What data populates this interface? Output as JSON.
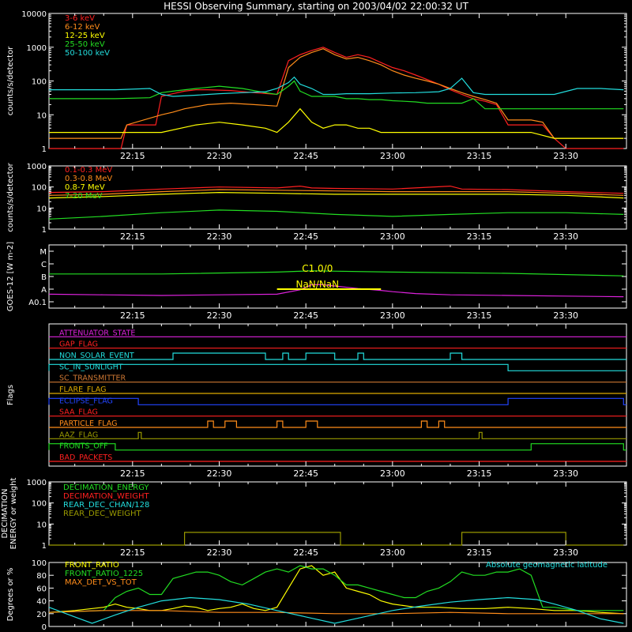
{
  "title": "HESSI Observing Summary, starting on 2003/04/02 22:00:32 UT",
  "colors": {
    "red": "#ff2020",
    "orange": "#ff8c1a",
    "yellow": "#ffff00",
    "green": "#22dd22",
    "cyan": "#22dddd",
    "magenta": "#dd22dd",
    "blue": "#2244ff",
    "olive": "#999900",
    "gold": "#ddaa00",
    "brown": "#cc7733",
    "axis": "#ffffff"
  },
  "time_ticks": [
    "22:15",
    "22:30",
    "22:45",
    "23:00",
    "23:15",
    "23:30"
  ],
  "chart_data": [
    {
      "type": "line",
      "title": "HESSI Observing Summary, starting on 2003/04/02 22:00:32 UT",
      "ylabel": "counts/s/detector",
      "yscale": "log",
      "ylim": [
        1,
        10000
      ],
      "yticks": [
        "1",
        "10",
        "100",
        "1000",
        "10000"
      ],
      "x_unit": "minutes after 22:00",
      "legend": [
        "3-6 keV",
        "6-12 keV",
        "12-25 keV",
        "25-50 keV",
        "50-100 keV"
      ],
      "series": [
        {
          "name": "3-6 keV",
          "color": "red",
          "x": [
            0,
            13,
            14,
            19,
            20,
            22,
            24,
            26,
            28,
            32,
            36,
            40,
            42,
            44,
            46,
            48,
            50,
            52,
            54,
            56,
            58,
            60,
            62,
            64,
            66,
            68,
            70,
            72,
            74,
            76,
            78,
            80,
            82,
            84,
            86,
            88,
            90,
            92,
            94,
            96,
            98,
            100
          ],
          "y": [
            1,
            1,
            5,
            5,
            35,
            42,
            50,
            55,
            55,
            52,
            45,
            40,
            400,
            600,
            800,
            1000,
            700,
            500,
            600,
            500,
            350,
            250,
            200,
            150,
            110,
            80,
            55,
            40,
            30,
            25,
            20,
            5,
            5,
            5,
            5,
            2,
            1,
            1,
            1,
            1,
            1,
            1
          ]
        },
        {
          "name": "6-12 keV",
          "color": "orange",
          "x": [
            0,
            13,
            14,
            20,
            22,
            24,
            28,
            32,
            36,
            40,
            42,
            44,
            46,
            48,
            50,
            52,
            54,
            56,
            58,
            60,
            62,
            64,
            66,
            68,
            70,
            72,
            74,
            76,
            78,
            80,
            82,
            84,
            86,
            88,
            92,
            96,
            100
          ],
          "y": [
            2,
            2,
            5,
            10,
            12,
            15,
            20,
            22,
            20,
            18,
            250,
            500,
            700,
            900,
            600,
            450,
            500,
            400,
            300,
            200,
            150,
            120,
            100,
            80,
            60,
            45,
            35,
            28,
            22,
            7,
            7,
            7,
            6,
            2,
            2,
            2,
            2
          ]
        },
        {
          "name": "12-25 keV",
          "color": "yellow",
          "x": [
            0,
            10,
            20,
            26,
            30,
            34,
            38,
            40,
            42,
            44,
            46,
            48,
            50,
            52,
            54,
            56,
            58,
            60,
            62,
            64,
            66,
            68,
            70,
            72,
            74,
            76,
            80,
            84,
            88,
            92,
            96,
            100
          ],
          "y": [
            3,
            3,
            3,
            5,
            6,
            5,
            4,
            3,
            6,
            15,
            6,
            4,
            5,
            5,
            4,
            4,
            3,
            3,
            3,
            3,
            3,
            3,
            3,
            3,
            3,
            3,
            3,
            3,
            2,
            2,
            2,
            2
          ]
        },
        {
          "name": "25-50 keV",
          "color": "green",
          "x": [
            0,
            6,
            12,
            18,
            20,
            22,
            26,
            30,
            34,
            38,
            40,
            42,
            43,
            44,
            46,
            48,
            50,
            52,
            54,
            56,
            58,
            60,
            62,
            64,
            66,
            68,
            70,
            72,
            74,
            76,
            80,
            84,
            88,
            92,
            96,
            100
          ],
          "y": [
            30,
            30,
            30,
            32,
            45,
            50,
            60,
            70,
            60,
            45,
            40,
            70,
            100,
            50,
            35,
            35,
            35,
            30,
            30,
            28,
            28,
            26,
            25,
            24,
            22,
            22,
            22,
            22,
            30,
            15,
            15,
            15,
            15,
            15,
            15,
            15
          ]
        },
        {
          "name": "50-100 keV",
          "color": "cyan",
          "x": [
            0,
            6,
            12,
            18,
            20,
            22,
            26,
            30,
            34,
            38,
            40,
            42,
            43,
            44,
            46,
            48,
            50,
            52,
            56,
            60,
            64,
            68,
            70,
            72,
            74,
            76,
            80,
            84,
            88,
            92,
            96,
            100
          ],
          "y": [
            55,
            55,
            55,
            60,
            40,
            35,
            38,
            42,
            45,
            48,
            60,
            90,
            130,
            80,
            60,
            40,
            40,
            42,
            42,
            44,
            45,
            48,
            60,
            120,
            45,
            40,
            40,
            40,
            40,
            60,
            60,
            55
          ]
        }
      ]
    },
    {
      "type": "line",
      "ylabel": "counts/s/detector",
      "yscale": "log",
      "ylim": [
        1,
        1000
      ],
      "yticks": [
        "1",
        "10",
        "100",
        "1000"
      ],
      "legend": [
        "0.1-0.3 MeV",
        "0.3-0.8 MeV",
        "0.8-7 MeV",
        "7-20 MeV"
      ],
      "series": [
        {
          "name": "0.1-0.3 MeV",
          "color": "red",
          "x": [
            0,
            10,
            20,
            30,
            40,
            44,
            46,
            50,
            60,
            70,
            72,
            80,
            90,
            100
          ],
          "y": [
            55,
            60,
            80,
            100,
            90,
            110,
            90,
            85,
            80,
            110,
            80,
            75,
            60,
            50
          ]
        },
        {
          "name": "0.3-0.8 MeV",
          "color": "orange",
          "x": [
            0,
            10,
            20,
            30,
            40,
            50,
            60,
            70,
            80,
            90,
            100
          ],
          "y": [
            40,
            45,
            60,
            75,
            70,
            65,
            60,
            60,
            60,
            50,
            40
          ]
        },
        {
          "name": "0.8-7 MeV",
          "color": "yellow",
          "x": [
            0,
            10,
            20,
            30,
            40,
            50,
            60,
            70,
            80,
            90,
            100
          ],
          "y": [
            30,
            35,
            45,
            55,
            50,
            45,
            45,
            45,
            45,
            40,
            30
          ]
        },
        {
          "name": "7-20 MeV",
          "color": "green",
          "x": [
            0,
            10,
            20,
            30,
            40,
            50,
            60,
            70,
            80,
            90,
            100
          ],
          "y": [
            3,
            4,
            6,
            8,
            7,
            5,
            4,
            5,
            6,
            6,
            5
          ]
        }
      ]
    },
    {
      "type": "line",
      "ylabel": "GOES-12 [W m-2]",
      "yticks": [
        "A0.1",
        "A",
        "B",
        "C",
        "M"
      ],
      "annotations": [
        "C1.0/0",
        "NaN/NaN"
      ],
      "series": [
        {
          "name": "long",
          "color": "green",
          "x": [
            0,
            20,
            40,
            46,
            60,
            80,
            100
          ],
          "y": [
            2.2,
            2.2,
            2.35,
            2.45,
            2.35,
            2.25,
            2.05
          ]
        },
        {
          "name": "short",
          "color": "magenta",
          "x": [
            0,
            10,
            20,
            30,
            40,
            44,
            46,
            48,
            50,
            54,
            58,
            60,
            64,
            70,
            80,
            90,
            100
          ],
          "y": [
            0.6,
            0.55,
            0.5,
            0.55,
            0.6,
            0.95,
            1.35,
            1.35,
            1.25,
            1.05,
            0.9,
            0.8,
            0.65,
            0.55,
            0.5,
            0.45,
            0.4
          ]
        }
      ]
    },
    {
      "type": "step",
      "ylabel": "Flags",
      "flags": [
        {
          "label": "ATTENUATOR_STATE",
          "color": "magenta",
          "high": []
        },
        {
          "label": "GAP_FLAG",
          "color": "red",
          "high": []
        },
        {
          "label": "NON_SOLAR_EVENT",
          "color": "cyan",
          "high": [
            [
              22,
              38
            ],
            [
              41,
              42
            ],
            [
              45,
              50
            ],
            [
              54,
              55
            ],
            [
              70,
              72
            ]
          ]
        },
        {
          "label": "SC_IN_SUNLIGHT",
          "color": "cyan",
          "high": [
            [
              0,
              80
            ]
          ]
        },
        {
          "label": "SC_TRANSMITTER",
          "color": "brown",
          "high": []
        },
        {
          "label": "FLARE_FLAG",
          "color": "gold",
          "high": []
        },
        {
          "label": "ECLIPSE_FLAG",
          "color": "blue",
          "high": [
            [
              0,
              16
            ],
            [
              80,
              100
            ]
          ]
        },
        {
          "label": "SAA_FLAG",
          "color": "red",
          "high": []
        },
        {
          "label": "PARTICLE_FLAG",
          "color": "orange",
          "high": [
            [
              28,
              29
            ],
            [
              31,
              33
            ],
            [
              40,
              41
            ],
            [
              45,
              47
            ],
            [
              65,
              66
            ],
            [
              68,
              69
            ]
          ]
        },
        {
          "label": "AAZ_FLAG",
          "color": "olive",
          "high": [
            [
              16,
              16.5
            ],
            [
              75,
              75.5
            ]
          ]
        },
        {
          "label": "FRONTS_OFF",
          "color": "green",
          "high": [
            [
              0,
              12
            ],
            [
              84,
              100
            ]
          ]
        },
        {
          "label": "BAD_PACKETS",
          "color": "red",
          "high": []
        }
      ]
    },
    {
      "type": "step",
      "ylabel": "DECIMATION ENERGY or weight",
      "yscale": "log",
      "ylim": [
        1,
        1000
      ],
      "yticks": [
        "1",
        "10",
        "100",
        "1000"
      ],
      "legend": [
        "DECIMATION_ENERGY",
        "DECIMATION_WEIGHT",
        "REAR_DEC_CHAN/128",
        "REAR_DEC_WEIGHT"
      ],
      "series": [
        {
          "name": "REAR_DEC_WEIGHT",
          "color": "olive",
          "x": [
            0,
            24,
            24,
            51,
            51,
            72,
            72,
            90,
            90,
            100
          ],
          "y": [
            1,
            1,
            4,
            4,
            1,
            1,
            4,
            4,
            1,
            1
          ]
        }
      ]
    },
    {
      "type": "line",
      "ylabel": "Degrees or %",
      "ylim": [
        0,
        100
      ],
      "yticks": [
        "0",
        "20",
        "40",
        "60",
        "80",
        "100"
      ],
      "legend": [
        "FRONT_RATIO",
        "FRONT_RATIO_1225",
        "MAX_DET_VS_TOT"
      ],
      "annotation": "Absolute geomagnetic latitude",
      "series": [
        {
          "name": "FRONT_RATIO",
          "color": "yellow",
          "x": [
            0,
            5,
            10,
            12,
            14,
            16,
            18,
            20,
            22,
            24,
            26,
            28,
            30,
            32,
            34,
            36,
            38,
            40,
            42,
            44,
            46,
            48,
            50,
            52,
            54,
            56,
            58,
            60,
            64,
            68,
            72,
            76,
            80,
            84,
            88,
            92,
            96,
            100
          ],
          "y": [
            22,
            25,
            30,
            35,
            30,
            28,
            25,
            25,
            28,
            32,
            30,
            25,
            28,
            30,
            35,
            28,
            25,
            30,
            60,
            90,
            95,
            80,
            85,
            60,
            55,
            50,
            40,
            35,
            30,
            30,
            28,
            28,
            30,
            28,
            25,
            25,
            22,
            20
          ]
        },
        {
          "name": "FRONT_RATIO_1225",
          "color": "green",
          "x": [
            0,
            10,
            12,
            14,
            16,
            18,
            20,
            22,
            24,
            26,
            28,
            30,
            32,
            34,
            36,
            38,
            40,
            42,
            44,
            46,
            48,
            50,
            52,
            54,
            56,
            58,
            60,
            62,
            64,
            66,
            68,
            70,
            72,
            74,
            76,
            78,
            80,
            82,
            84,
            86,
            88,
            92,
            96,
            100
          ],
          "y": [
            22,
            25,
            45,
            55,
            60,
            50,
            50,
            75,
            80,
            85,
            85,
            80,
            70,
            65,
            75,
            85,
            90,
            85,
            95,
            90,
            90,
            80,
            65,
            65,
            60,
            55,
            50,
            45,
            45,
            55,
            60,
            70,
            85,
            80,
            80,
            85,
            85,
            90,
            80,
            30,
            30,
            25,
            25,
            25
          ]
        },
        {
          "name": "MAX_DET_VS_TOT",
          "color": "orange",
          "x": [
            0,
            10,
            20,
            30,
            40,
            50,
            60,
            70,
            80,
            90,
            100
          ],
          "y": [
            22,
            25,
            25,
            22,
            22,
            20,
            20,
            22,
            20,
            20,
            20
          ]
        },
        {
          "name": "Absolute geomagnetic latitude",
          "color": "cyan",
          "x": [
            0,
            5,
            8,
            12,
            16,
            20,
            25,
            30,
            35,
            40,
            45,
            50,
            55,
            60,
            65,
            70,
            75,
            80,
            85,
            88,
            92,
            96,
            100
          ],
          "y": [
            30,
            15,
            5,
            18,
            30,
            40,
            45,
            42,
            35,
            25,
            15,
            5,
            15,
            25,
            32,
            38,
            42,
            45,
            42,
            35,
            25,
            12,
            5
          ]
        }
      ]
    }
  ]
}
